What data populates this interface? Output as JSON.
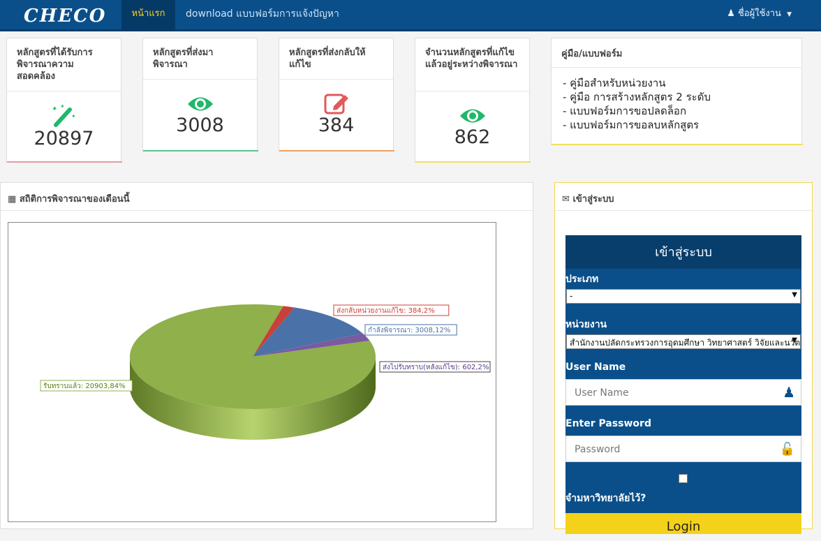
{
  "nav": {
    "brand": "CHECO",
    "home": "หน้าแรก",
    "download": "download แบบฟอร์มการแจ้งปัญหา",
    "user": "ชื่อผู้ใช้งาน"
  },
  "cards": [
    {
      "title": "หลักสูตรที่ได้รับการพิจารณาความสอดคล้อง",
      "value": "20897",
      "icon": "magic-wand-icon",
      "color": "#20b86a",
      "bar": "#e39aa0"
    },
    {
      "title": "หลักสูตรที่ส่งมาพิจารณา",
      "value": "3008",
      "icon": "eye-icon",
      "color": "#20b86a",
      "bar": "#5cc58e"
    },
    {
      "title": "หลักสูตรที่ส่งกลับให้แก้ไข",
      "value": "384",
      "icon": "edit-icon",
      "color": "#e05a5a",
      "bar": "#f0a060"
    },
    {
      "title": "จำนวนหลักสูตรที่แก้ไขแล้วอยู่ระหว่างพิจารณา",
      "value": "862",
      "icon": "eye-icon",
      "color": "#20b86a",
      "bar": "#f0e060"
    }
  ],
  "manual": {
    "title": "คู่มือ/แบบฟอร์ม",
    "items": [
      "- คู่มือสำหรับหน่วยงาน",
      "- คู่มือ การสร้างหลักสูตร 2 ระดับ",
      "- แบบฟอร์มการขอปลดล็อก",
      "- แบบฟอร์มการขอลบหลักสูตร"
    ]
  },
  "stats": {
    "title": "สถิติการพิจารณาของเดือนนี้"
  },
  "chart_data": {
    "type": "pie",
    "title": "",
    "slices": [
      {
        "label": "รับทราบแล้ว: 20903,84%",
        "value": 20903,
        "percent": 84,
        "color": "#8fb04a"
      },
      {
        "label": "ส่งกลับหน่วยงานแก้ไข: 384,2%",
        "value": 384,
        "percent": 2,
        "color": "#c8403a"
      },
      {
        "label": "กำลังพิจารณา: 3008,12%",
        "value": 3008,
        "percent": 12,
        "color": "#4a72a8"
      },
      {
        "label": "ส่งไปรับทราบ(หลังแก้ไข): 602,2%",
        "value": 602,
        "percent": 2,
        "color": "#7a5aa0"
      }
    ]
  },
  "login_panel": {
    "header": "เข้าสู่ระบบ",
    "title": "เข้าสู่ระบบ",
    "type_label": "ประเภท",
    "type_value": "-",
    "agency_label": "หน่วยงาน",
    "agency_value": "สำนักงานปลัดกระทรวงการอุดมศึกษา วิทยาศาสตร์ วิจัยและนวัตกรรม",
    "username_label": "User Name",
    "username_placeholder": "User Name",
    "password_label": "Enter Password",
    "password_placeholder": "Password",
    "remember_label": "จำมหาวิทยาลัยไว้?",
    "login_button": "Login"
  }
}
